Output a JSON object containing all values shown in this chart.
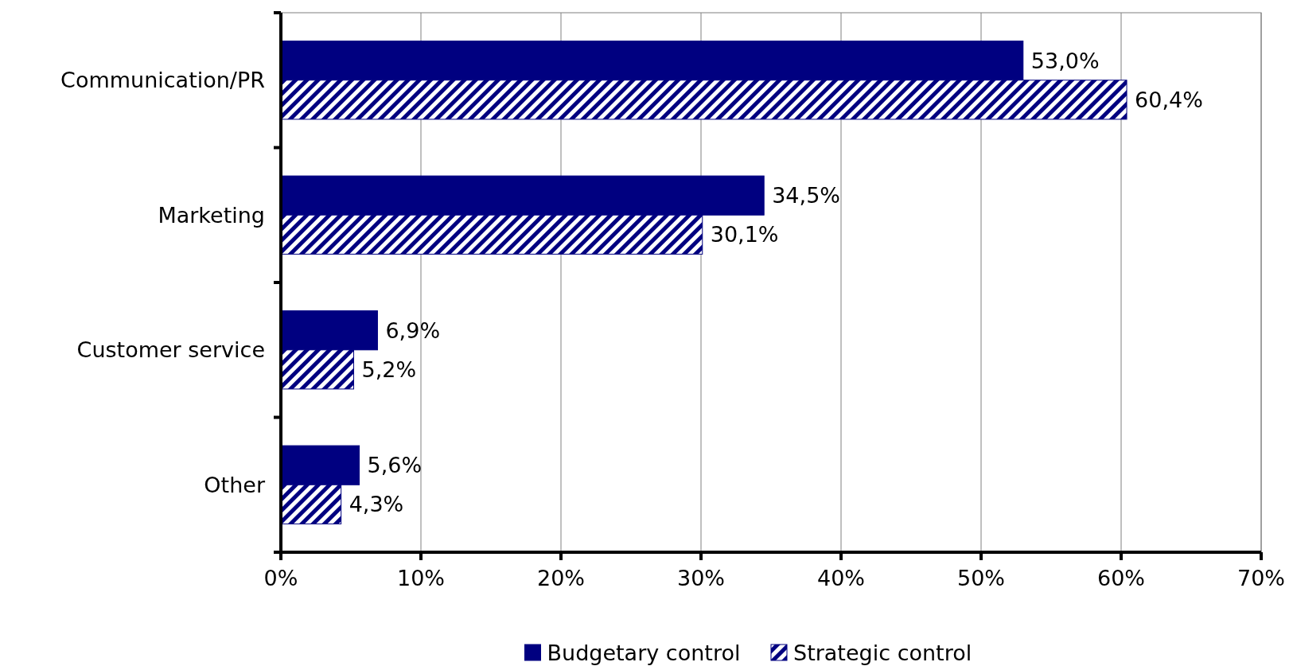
{
  "chart_data": {
    "type": "bar",
    "orientation": "horizontal",
    "categories": [
      "Communication/PR",
      "Marketing",
      "Customer service",
      "Other"
    ],
    "series": [
      {
        "name": "Budgetary control",
        "color": "#000080",
        "values": [
          53.0,
          34.5,
          6.9,
          5.6
        ],
        "value_labels": [
          "53,0%",
          "34,5%",
          "6,9%",
          "5,6%"
        ]
      },
      {
        "name": "Strategic control",
        "color": "#000080",
        "values": [
          60.4,
          30.1,
          5.2,
          4.3
        ],
        "value_labels": [
          "60,4%",
          "30,1%",
          "5,2%",
          "4,3%"
        ]
      }
    ],
    "xlim": [
      0,
      70
    ],
    "xticks": [
      {
        "value": 0,
        "label": "0%"
      },
      {
        "value": 10,
        "label": "10%"
      },
      {
        "value": 20,
        "label": "20%"
      },
      {
        "value": 30,
        "label": "30%"
      },
      {
        "value": 40,
        "label": "40%"
      },
      {
        "value": 50,
        "label": "50%"
      },
      {
        "value": 60,
        "label": "60%"
      },
      {
        "value": 70,
        "label": "70%"
      }
    ],
    "grid": "x",
    "legend": "bottom"
  }
}
